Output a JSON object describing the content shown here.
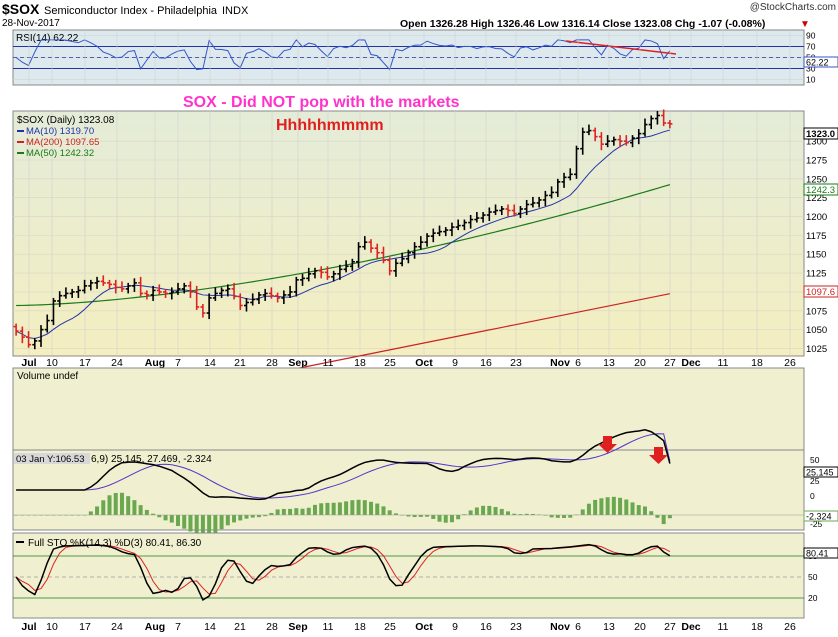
{
  "header": {
    "symbol": "$SOX",
    "name": "Semiconductor Index - Philadelphia",
    "exchange": "INDX",
    "date": "28-Nov-2017",
    "brand": "@StockCharts.com",
    "quote": "Open 1326.28  High 1326.46  Low 1316.14  Close 1323.08  Chg -1.07 (-0.08%)",
    "chg_arrow": "▼"
  },
  "annotation": {
    "line1": "SOX -  Did NOT pop with the markets",
    "line2": "Hhhhhmmmm",
    "pink": "#ff33cc",
    "red": "#e02020"
  },
  "price_legend": {
    "title": "$SOX (Daily) 1323.08",
    "ma10": "MA(10) 1319.70",
    "ma200": "MA(200) 1097.65",
    "ma50": "MA(50) 1242.32"
  },
  "rsi_panel": {
    "label": "RSI(14) 62.22",
    "value_tag": "62.22",
    "ticks": [
      "90",
      "70",
      "50",
      "30",
      "10"
    ]
  },
  "volume_panel": {
    "label": "Volume undef"
  },
  "macd_panel": {
    "label": "03 Jan Y:106.53",
    "label_rest": "6,9) 25.145, 27.469, -2.324",
    "value_tag": "25.145",
    "hist_tag": "-2.324",
    "ticks": [
      "50",
      "25",
      "0",
      "-25"
    ]
  },
  "sto_panel": {
    "label": "Full STO %K(14,3) %D(3) 80.41, 86.30",
    "value_tag": "80.41",
    "ticks": [
      "80",
      "50",
      "20"
    ]
  },
  "x_axis": {
    "labels": [
      "Jul",
      "10",
      "17",
      "24",
      "Aug",
      "7",
      "14",
      "21",
      "28",
      "Sep",
      "11",
      "18",
      "25",
      "Oct",
      "9",
      "16",
      "23",
      "Nov",
      "6",
      "13",
      "20",
      "27",
      "Dec",
      "11",
      "18",
      "26"
    ],
    "month_labels": [
      "Jul",
      "Aug",
      "Sep",
      "Oct",
      "Nov",
      "Dec"
    ]
  },
  "price_ticks": {
    "labels": [
      "1300",
      "1275",
      "1250",
      "1225",
      "1200",
      "1175",
      "1150",
      "1125",
      "1100",
      "1075",
      "1050",
      "1025"
    ],
    "last_tag": "1323.0",
    "ma50_tag": "1242.3",
    "ma200_tag": "1097.6"
  },
  "colors": {
    "panel_bg": "#f0f0d0",
    "rsi_bg": "#dde9ec",
    "ma10": "#2233aa",
    "ma50": "#1a7a1a",
    "ma200": "#cc2222",
    "up_bar": "#000000",
    "down_bar": "#dd2222",
    "macd_hist": "#6aa84f"
  },
  "chart_data": {
    "type": "ohlc",
    "dates": [
      "Jun 29",
      "Jun 30",
      "Jul 3",
      "Jul 5",
      "Jul 6",
      "Jul 7",
      "Jul 10",
      "Jul 11",
      "Jul 12",
      "Jul 13",
      "Jul 14",
      "Jul 17",
      "Jul 18",
      "Jul 19",
      "Jul 20",
      "Jul 21",
      "Jul 24",
      "Jul 25",
      "Jul 26",
      "Jul 27",
      "Jul 28",
      "Jul 31",
      "Aug 1",
      "Aug 2",
      "Aug 3",
      "Aug 4",
      "Aug 7",
      "Aug 8",
      "Aug 9",
      "Aug 10",
      "Aug 11",
      "Aug 14",
      "Aug 15",
      "Aug 16",
      "Aug 17",
      "Aug 18",
      "Aug 21",
      "Aug 22",
      "Aug 23",
      "Aug 24",
      "Aug 25",
      "Aug 28",
      "Aug 29",
      "Aug 30",
      "Aug 31",
      "Sep 1",
      "Sep 5",
      "Sep 6",
      "Sep 7",
      "Sep 8",
      "Sep 11",
      "Sep 12",
      "Sep 13",
      "Sep 14",
      "Sep 15",
      "Sep 18",
      "Sep 19",
      "Sep 20",
      "Sep 21",
      "Sep 22",
      "Sep 25",
      "Sep 26",
      "Sep 27",
      "Sep 28",
      "Sep 29",
      "Oct 2",
      "Oct 3",
      "Oct 4",
      "Oct 5",
      "Oct 6",
      "Oct 9",
      "Oct 10",
      "Oct 11",
      "Oct 12",
      "Oct 13",
      "Oct 16",
      "Oct 17",
      "Oct 18",
      "Oct 19",
      "Oct 20",
      "Oct 23",
      "Oct 24",
      "Oct 25",
      "Oct 26",
      "Oct 27",
      "Oct 30",
      "Oct 31",
      "Nov 1",
      "Nov 2",
      "Nov 3",
      "Nov 6",
      "Nov 7",
      "Nov 8",
      "Nov 9",
      "Nov 10",
      "Nov 13",
      "Nov 14",
      "Nov 15",
      "Nov 16",
      "Nov 17",
      "Nov 20",
      "Nov 21",
      "Nov 22",
      "Nov 24",
      "Nov 27",
      "Nov 28"
    ],
    "close": [
      1048,
      1040,
      1030,
      1035,
      1050,
      1062,
      1088,
      1095,
      1098,
      1100,
      1102,
      1108,
      1112,
      1114,
      1112,
      1110,
      1106,
      1104,
      1108,
      1112,
      1098,
      1096,
      1102,
      1100,
      1098,
      1100,
      1104,
      1108,
      1100,
      1080,
      1072,
      1092,
      1098,
      1102,
      1104,
      1094,
      1082,
      1086,
      1090,
      1096,
      1098,
      1095,
      1092,
      1096,
      1100,
      1116,
      1118,
      1124,
      1128,
      1126,
      1120,
      1124,
      1130,
      1134,
      1140,
      1160,
      1166,
      1158,
      1152,
      1142,
      1128,
      1138,
      1144,
      1152,
      1160,
      1166,
      1174,
      1178,
      1180,
      1182,
      1186,
      1188,
      1192,
      1196,
      1198,
      1202,
      1206,
      1208,
      1210,
      1208,
      1204,
      1210,
      1216,
      1218,
      1222,
      1228,
      1232,
      1246,
      1252,
      1256,
      1290,
      1312,
      1314,
      1306,
      1296,
      1300,
      1302,
      1300,
      1298,
      1304,
      1310,
      1322,
      1330,
      1334,
      1324,
      1323
    ],
    "series": [
      {
        "name": "MA(10)",
        "last": 1319.7
      },
      {
        "name": "MA(200)",
        "last": 1097.65
      },
      {
        "name": "MA(50)",
        "last": 1242.32
      }
    ],
    "ylim": [
      1015,
      1340
    ],
    "rsi_last": 62.22,
    "macd": {
      "macd": 25.145,
      "signal": 27.469,
      "hist": -2.324
    },
    "sto": {
      "k": 80.41,
      "d": 86.3
    }
  }
}
